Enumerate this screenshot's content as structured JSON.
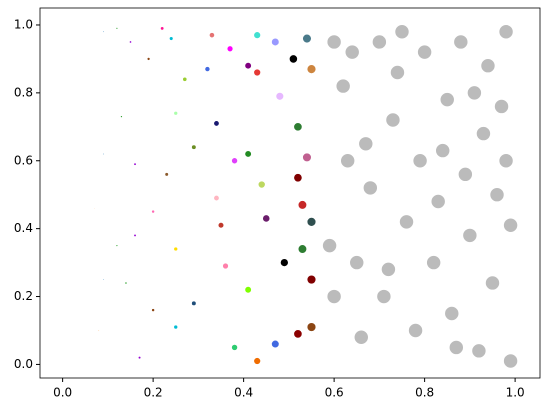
{
  "chart_data": {
    "type": "scatter",
    "xlim": [
      -0.05,
      1.055
    ],
    "ylim": [
      -0.04,
      1.05
    ],
    "xticks": [
      {
        "value": 0,
        "label": "0.0"
      },
      0.2,
      0.4,
      0.6,
      0.8,
      {
        "value": 1,
        "label": "1.0"
      }
    ],
    "yticks": [
      {
        "value": 0,
        "label": "0.0"
      },
      0.2,
      0.4,
      0.6,
      0.8,
      {
        "value": 1,
        "label": "1.0"
      }
    ],
    "x": [
      0.05,
      0.06,
      0.07,
      0.08,
      0.09,
      0.09,
      0.09,
      0.12,
      0.13,
      0.12,
      0.14,
      0.15,
      0.16,
      0.17,
      0.16,
      0.19,
      0.2,
      0.2,
      0.22,
      0.24,
      0.25,
      0.23,
      0.25,
      0.25,
      0.27,
      0.29,
      0.29,
      0.33,
      0.32,
      0.34,
      0.34,
      0.35,
      0.37,
      0.38,
      0.36,
      0.38,
      0.41,
      0.41,
      0.41,
      0.43,
      0.43,
      0.43,
      0.44,
      0.45,
      0.47,
      0.48,
      0.47,
      0.49,
      0.51,
      0.52,
      0.52,
      0.53,
      0.52,
      0.53,
      0.54,
      0.55,
      0.54,
      0.55,
      0.55,
      0.55,
      0.59,
      0.6,
      0.62,
      0.63,
      0.65,
      0.66,
      0.68,
      0.7,
      0.71,
      0.73,
      0.74,
      0.76,
      0.78,
      0.79,
      0.8,
      0.82,
      0.83,
      0.85,
      0.86,
      0.88,
      0.89,
      0.9,
      0.92,
      0.93,
      0.94,
      0.95,
      0.96,
      0.97,
      0.98,
      0.99,
      0.99,
      0.6,
      0.67,
      0.75,
      0.84,
      0.91,
      0.98,
      0.64,
      0.72,
      0.87
    ],
    "values": [
      0.96,
      0.75,
      0.46,
      0.1,
      0.98,
      0.62,
      0.25,
      0.99,
      0.73,
      0.35,
      0.24,
      0.95,
      0.59,
      0.02,
      0.38,
      0.9,
      0.45,
      0.16,
      0.99,
      0.96,
      0.74,
      0.56,
      0.34,
      0.11,
      0.84,
      0.18,
      0.64,
      0.97,
      0.87,
      0.71,
      0.49,
      0.41,
      0.93,
      0.6,
      0.29,
      0.05,
      0.88,
      0.62,
      0.22,
      0.86,
      0.97,
      0.01,
      0.53,
      0.43,
      0.95,
      0.79,
      0.06,
      0.3,
      0.9,
      0.7,
      0.55,
      0.47,
      0.09,
      0.34,
      0.96,
      0.87,
      0.61,
      0.25,
      0.42,
      0.11,
      0.35,
      0.95,
      0.82,
      0.6,
      0.3,
      0.08,
      0.52,
      0.95,
      0.2,
      0.72,
      0.86,
      0.42,
      0.1,
      0.6,
      0.92,
      0.3,
      0.48,
      0.78,
      0.15,
      0.95,
      0.56,
      0.38,
      0.04,
      0.68,
      0.88,
      0.24,
      0.5,
      0.76,
      0.98,
      0.01,
      0.41,
      0.2,
      0.65,
      0.98,
      0.63,
      0.8,
      0.6,
      0.92,
      0.28,
      0.05
    ],
    "sizes": [
      0.3,
      0.4,
      0.6,
      0.8,
      1,
      1,
      1,
      1.7,
      2,
      1.7,
      2.4,
      2.7,
      3.1,
      3.5,
      3.1,
      4.3,
      4.8,
      4.8,
      5.8,
      6.9,
      7.5,
      6.3,
      7.5,
      7.5,
      8.7,
      10,
      10,
      13,
      12,
      14,
      14,
      15,
      16,
      17,
      16,
      17,
      20,
      20,
      20,
      22,
      22,
      22,
      23,
      24,
      27,
      28,
      27,
      29,
      31,
      32,
      32,
      34,
      32,
      34,
      35,
      36,
      35,
      36,
      36,
      36,
      90,
      90,
      90,
      90,
      90,
      90,
      90,
      90,
      90,
      90,
      90,
      90,
      90,
      90,
      90,
      90,
      90,
      90,
      90,
      90,
      90,
      90,
      90,
      90,
      90,
      90,
      90,
      90,
      90,
      90,
      90,
      90,
      90,
      90,
      90,
      90,
      90,
      90,
      90,
      90
    ],
    "colors": [
      "#ff7f0e",
      "#ff7f0e",
      "#ff7f0e",
      "#ff7f0e",
      "#1f77b4",
      "#1f77b4",
      "#1f77b4",
      "#2ca02c",
      "#2ca02c",
      "#2ca02c",
      "#2ca02c",
      "#9400d3",
      "#9400d3",
      "#9400d3",
      "#9400d3",
      "#8b4513",
      "#ff69b4",
      "#8b4513",
      "#ff1493",
      "#00bcd4",
      "#aaffaa",
      "#8b5a2b",
      "#ffdd00",
      "#00bcd4",
      "#9acd32",
      "#1f4e79",
      "#6b8e23",
      "#e57373",
      "#4169e1",
      "#191970",
      "#ffb6c1",
      "#c0392b",
      "#ff00ff",
      "#e040fb",
      "#ff80ab",
      "#2ecc71",
      "#800080",
      "#228b22",
      "#7fff00",
      "#e53935",
      "#40e0d0",
      "#ef6c00",
      "#bdd860",
      "#6b1e6b",
      "#9999ff",
      "#e6b8ff",
      "#4169e1",
      "#000000",
      "#000000",
      "#2e7d32",
      "#800000",
      "#c62828",
      "#8b0000",
      "#2e7d32",
      "#4a7a8a",
      "#cd853f",
      "#c06090",
      "#800000",
      "#2f4f4f",
      "#8b4513",
      "#bbbbbb",
      "#bbbbbb",
      "#bbbbbb",
      "#bbbbbb",
      "#bbbbbb",
      "#bbbbbb",
      "#bbbbbb",
      "#bbbbbb",
      "#bbbbbb",
      "#bbbbbb",
      "#bbbbbb",
      "#bbbbbb",
      "#bbbbbb",
      "#bbbbbb",
      "#bbbbbb",
      "#bbbbbb",
      "#bbbbbb",
      "#bbbbbb",
      "#bbbbbb",
      "#bbbbbb",
      "#bbbbbb",
      "#bbbbbb",
      "#bbbbbb",
      "#bbbbbb",
      "#bbbbbb",
      "#bbbbbb",
      "#bbbbbb",
      "#bbbbbb",
      "#bbbbbb",
      "#bbbbbb",
      "#bbbbbb",
      "#bbbbbb",
      "#bbbbbb",
      "#bbbbbb",
      "#bbbbbb",
      "#bbbbbb",
      "#bbbbbb",
      "#bbbbbb",
      "#bbbbbb",
      "#bbbbbb"
    ]
  }
}
